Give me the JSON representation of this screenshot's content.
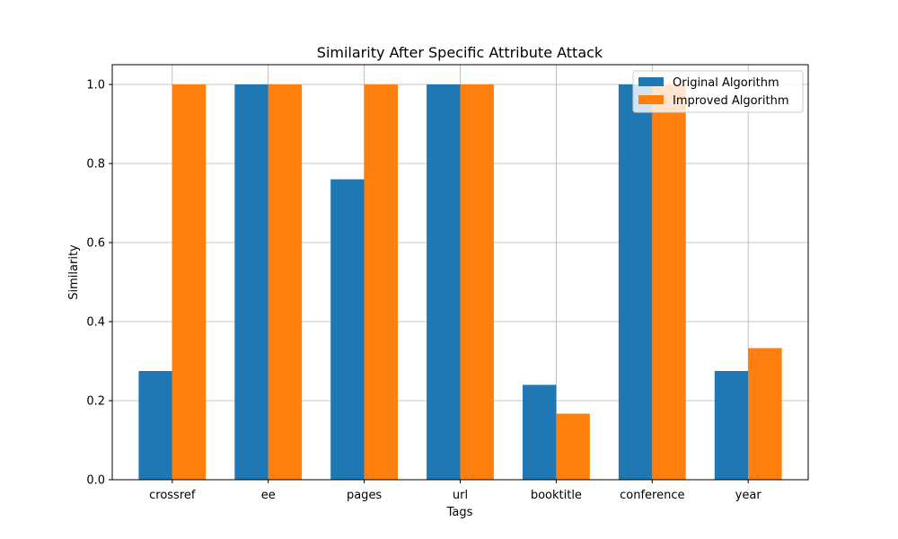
{
  "chart_data": {
    "type": "bar",
    "title": "Similarity After Specific Attribute Attack",
    "xlabel": "Tags",
    "ylabel": "Similarity",
    "categories": [
      "crossref",
      "ee",
      "pages",
      "url",
      "booktitle",
      "conference",
      "year"
    ],
    "series": [
      {
        "name": "Original Algorithm",
        "color": "#1f77b4",
        "values": [
          0.275,
          1.0,
          0.76,
          1.0,
          0.24,
          1.0,
          0.275
        ]
      },
      {
        "name": "Improved Algorithm",
        "color": "#ff7f0e",
        "values": [
          1.0,
          1.0,
          1.0,
          1.0,
          0.167,
          1.0,
          0.333
        ]
      }
    ],
    "ylim": [
      0,
      1.05
    ],
    "yticks": [
      "0.0",
      "0.2",
      "0.4",
      "0.6",
      "0.8",
      "1.0"
    ],
    "grid": true,
    "legend_position": "top-right"
  }
}
